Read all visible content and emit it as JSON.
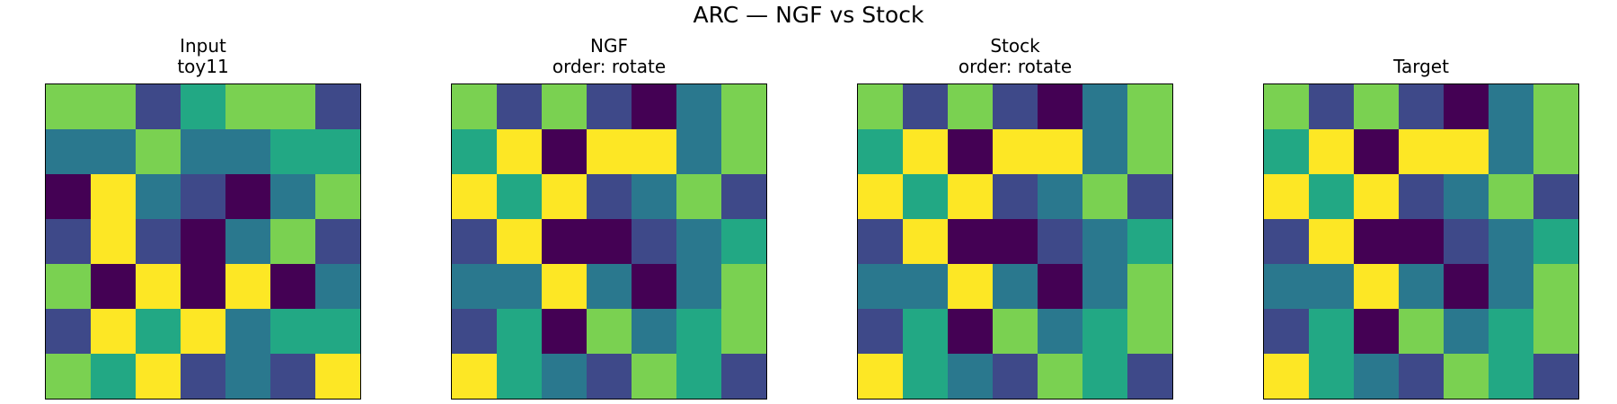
{
  "title": "ARC — NGF vs Stock",
  "palette": {
    "0": "#440154",
    "1": "#3e4989",
    "2": "#2a788e",
    "3": "#22a884",
    "4": "#7ad151",
    "5": "#fde725"
  },
  "panels": [
    {
      "id": "input",
      "title_line1": "Input",
      "title_line2": "toy11",
      "grid": [
        [
          4,
          4,
          1,
          3,
          4,
          4,
          1
        ],
        [
          2,
          2,
          4,
          2,
          2,
          3,
          3
        ],
        [
          0,
          5,
          2,
          1,
          0,
          2,
          4
        ],
        [
          1,
          5,
          1,
          0,
          2,
          4,
          1
        ],
        [
          4,
          0,
          5,
          0,
          5,
          0,
          2
        ],
        [
          1,
          5,
          3,
          5,
          2,
          3,
          3
        ],
        [
          4,
          3,
          5,
          1,
          2,
          1,
          5
        ]
      ]
    },
    {
      "id": "ngf",
      "title_line1": "NGF",
      "title_line2": "order: rotate",
      "grid": [
        [
          4,
          1,
          4,
          1,
          0,
          2,
          4
        ],
        [
          3,
          5,
          0,
          5,
          5,
          2,
          4
        ],
        [
          5,
          3,
          5,
          1,
          2,
          4,
          1
        ],
        [
          1,
          5,
          0,
          0,
          1,
          2,
          3
        ],
        [
          2,
          2,
          5,
          2,
          0,
          2,
          4
        ],
        [
          1,
          3,
          0,
          4,
          2,
          3,
          4
        ],
        [
          5,
          3,
          2,
          1,
          4,
          3,
          1
        ]
      ]
    },
    {
      "id": "stock",
      "title_line1": "Stock",
      "title_line2": "order: rotate",
      "grid": [
        [
          4,
          1,
          4,
          1,
          0,
          2,
          4
        ],
        [
          3,
          5,
          0,
          5,
          5,
          2,
          4
        ],
        [
          5,
          3,
          5,
          1,
          2,
          4,
          1
        ],
        [
          1,
          5,
          0,
          0,
          1,
          2,
          3
        ],
        [
          2,
          2,
          5,
          2,
          0,
          2,
          4
        ],
        [
          1,
          3,
          0,
          4,
          2,
          3,
          4
        ],
        [
          5,
          3,
          2,
          1,
          4,
          3,
          1
        ]
      ]
    },
    {
      "id": "target",
      "title_line1": "",
      "title_line2": "Target",
      "grid": [
        [
          4,
          1,
          4,
          1,
          0,
          2,
          4
        ],
        [
          3,
          5,
          0,
          5,
          5,
          2,
          4
        ],
        [
          5,
          3,
          5,
          1,
          2,
          4,
          1
        ],
        [
          1,
          5,
          0,
          0,
          1,
          2,
          3
        ],
        [
          2,
          2,
          5,
          2,
          0,
          2,
          4
        ],
        [
          1,
          3,
          0,
          4,
          2,
          3,
          4
        ],
        [
          5,
          3,
          2,
          1,
          4,
          3,
          1
        ]
      ]
    }
  ]
}
